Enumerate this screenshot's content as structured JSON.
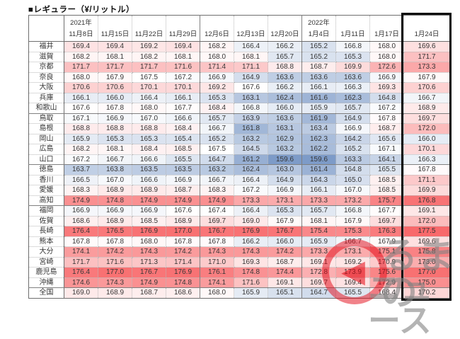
{
  "chart_data": {
    "type": "heatmap",
    "title": "■レギュラー（¥/リットル）",
    "unit": "¥/リットル",
    "columns": [
      {
        "year": "2021年",
        "date": "11月8日"
      },
      {
        "year": "",
        "date": "11月15日"
      },
      {
        "year": "",
        "date": "11月22日"
      },
      {
        "year": "",
        "date": "11月29日"
      },
      {
        "year": "",
        "date": "12月6日"
      },
      {
        "year": "",
        "date": "12月13日"
      },
      {
        "year": "",
        "date": "12月20日"
      },
      {
        "year": "2022年",
        "date": "1月4日"
      },
      {
        "year": "",
        "date": "1月11日"
      },
      {
        "year": "",
        "date": "1月17日"
      },
      {
        "year": "",
        "date": "1月24日"
      }
    ],
    "rows": [
      {
        "label": "福井",
        "values": [
          169.4,
          169.4,
          169.2,
          169.4,
          168.2,
          166.4,
          166.2,
          165.2,
          166.8,
          168.0,
          169.6
        ]
      },
      {
        "label": "滋賀",
        "values": [
          168.2,
          168.1,
          168.2,
          168.1,
          168.0,
          168.1,
          165.7,
          165.2,
          165.3,
          168.0,
          171.7
        ]
      },
      {
        "label": "京都",
        "values": [
          171.7,
          171.7,
          171.7,
          171.6,
          171.4,
          171.1,
          168.8,
          168.7,
          169.9,
          172.6,
          173.3
        ]
      },
      {
        "label": "奈良",
        "values": [
          168.0,
          167.9,
          167.5,
          167.2,
          166.9,
          164.9,
          163.6,
          163.6,
          163.6,
          166.9,
          167.9
        ]
      },
      {
        "label": "大阪",
        "values": [
          170.6,
          170.6,
          170.1,
          170.1,
          169.2,
          167.6,
          166.2,
          166.1,
          166.3,
          169.3,
          170.6
        ]
      },
      {
        "label": "兵庫",
        "values": [
          166.1,
          166.0,
          166.4,
          166.1,
          165.3,
          163.1,
          162.4,
          161.6,
          162.3,
          164.8,
          166.7
        ]
      },
      {
        "label": "和歌山",
        "values": [
          167.6,
          167.8,
          168.0,
          167.7,
          168.4,
          166.8,
          166.0,
          165.9,
          165.7,
          167.2,
          168.9
        ]
      },
      {
        "label": "鳥取",
        "values": [
          167.1,
          166.9,
          167.0,
          166.6,
          165.7,
          163.9,
          163.6,
          161.9,
          164.9,
          167.8,
          169.7
        ]
      },
      {
        "label": "島根",
        "values": [
          168.8,
          168.8,
          168.8,
          168.4,
          166.7,
          161.8,
          163.1,
          163.4,
          166.9,
          168.7,
          172.0
        ]
      },
      {
        "label": "岡山",
        "values": [
          165.9,
          165.3,
          165.3,
          165.4,
          165.2,
          163.2,
          162.9,
          162.3,
          164.2,
          165.6,
          166.0
        ]
      },
      {
        "label": "広島",
        "values": [
          168.2,
          168.1,
          168.4,
          168.5,
          167.5,
          164.5,
          163.2,
          162.2,
          165.2,
          167.1,
          170.1
        ]
      },
      {
        "label": "山口",
        "values": [
          167.2,
          166.7,
          166.6,
          165.5,
          164.7,
          161.2,
          159.6,
          159.6,
          163.3,
          164.1,
          166.3
        ]
      },
      {
        "label": "徳島",
        "values": [
          163.7,
          163.8,
          163.5,
          163.5,
          163.2,
          162.4,
          163.0,
          161.4,
          164.8,
          165.5,
          167.8
        ]
      },
      {
        "label": "香川",
        "values": [
          166.5,
          167.0,
          166.6,
          166.9,
          166.7,
          166.4,
          164.9,
          164.3,
          165.0,
          168.5,
          171.1
        ]
      },
      {
        "label": "愛媛",
        "values": [
          168.3,
          168.9,
          168.9,
          168.7,
          168.3,
          167.2,
          166.9,
          166.1,
          167.0,
          168.5,
          169.9
        ]
      },
      {
        "label": "高知",
        "values": [
          174.9,
          174.8,
          174.9,
          174.9,
          174.9,
          173.3,
          173.1,
          173.3,
          173.2,
          175.7,
          176.8
        ]
      },
      {
        "label": "福岡",
        "values": [
          166.9,
          166.9,
          166.9,
          167.6,
          167.4,
          166.4,
          165.3,
          165.7,
          166.8,
          167.7,
          169.1
        ]
      },
      {
        "label": "佐賀",
        "values": [
          168.6,
          168.9,
          168.5,
          168.9,
          169.7,
          169.0,
          167.9,
          168.1,
          167.9,
          169.7,
          172.0
        ]
      },
      {
        "label": "長崎",
        "values": [
          176.4,
          176.5,
          176.9,
          177.0,
          176.7,
          176.9,
          176.7,
          175.4,
          175.3,
          176.3,
          177.5
        ]
      },
      {
        "label": "熊本",
        "values": [
          167.8,
          167.8,
          168.0,
          167.8,
          167.8,
          166.2,
          166.0,
          165.9,
          166.7,
          167.9,
          169.6
        ]
      },
      {
        "label": "大分",
        "values": [
          174.1,
          174.2,
          174.3,
          174.2,
          174.3,
          174.3,
          174.2,
          173.3,
          173.1,
          175.1,
          175.8
        ]
      },
      {
        "label": "宮崎",
        "values": [
          171.7,
          171.6,
          171.3,
          171.4,
          171.0,
          169.3,
          168.7,
          169.1,
          169.2,
          170.9,
          173.0
        ]
      },
      {
        "label": "鹿児島",
        "values": [
          176.4,
          177.0,
          176.7,
          176.9,
          176.1,
          174.8,
          174.4,
          172.8,
          173.9,
          175.6,
          177.0
        ]
      },
      {
        "label": "沖縄",
        "values": [
          174.6,
          174.3,
          174.9,
          174.8,
          174.1,
          171.6,
          169.1,
          169.7,
          169.4,
          172.9,
          175.0
        ]
      },
      {
        "label": "全国",
        "values": [
          169.0,
          168.9,
          168.7,
          168.6,
          168.0,
          165.9,
          165.1,
          164.7,
          165.5,
          168.4,
          170.2
        ]
      }
    ],
    "color_scale": {
      "min": 159.6,
      "mid": 167.5,
      "max": 177.5,
      "min_color": "#7D9BC8",
      "mid_color": "#FFFFFF",
      "max_color": "#F8696B"
    },
    "solid_row_borders_after": [
      6,
      11,
      15,
      23
    ],
    "solid_col_borders_after": [
      3,
      6
    ],
    "highlighted_column": "1月24日",
    "highlight_border_color": "#0B0B0B"
  },
  "watermark": {
    "text_top": "るまの",
    "text_bottom": "ニュース",
    "circle_color": "#E30613",
    "text_color": "#828282",
    "arrow_glyph": "◀"
  }
}
